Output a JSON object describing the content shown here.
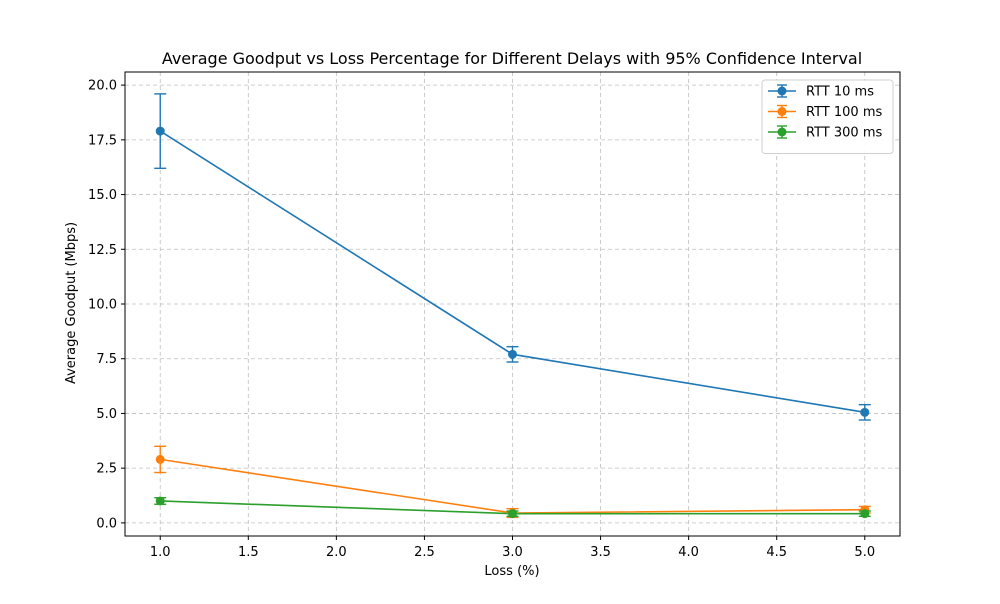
{
  "chart_data": {
    "type": "line",
    "title": "Average Goodput vs Loss Percentage for Different Delays with 95% Confidence Interval",
    "xlabel": "Loss (%)",
    "ylabel": "Average Goodput (Mbps)",
    "x_ticks": [
      "1.0",
      "1.5",
      "2.0",
      "2.5",
      "3.0",
      "3.5",
      "4.0",
      "4.5",
      "5.0"
    ],
    "y_ticks": [
      "0.0",
      "2.5",
      "5.0",
      "7.5",
      "10.0",
      "12.5",
      "15.0",
      "17.5",
      "20.0"
    ],
    "xlim": [
      0.8,
      5.2
    ],
    "ylim": [
      -0.6,
      20.6
    ],
    "grid": true,
    "legend_position": "top-right",
    "x": [
      1.0,
      3.0,
      5.0
    ],
    "series": [
      {
        "name": "RTT 10 ms",
        "color": "#1f77b4",
        "values": [
          17.9,
          7.7,
          5.05
        ],
        "error": [
          1.7,
          0.35,
          0.35
        ]
      },
      {
        "name": "RTT 100 ms",
        "color": "#ff7f0e",
        "values": [
          2.9,
          0.45,
          0.6
        ],
        "error": [
          0.6,
          0.2,
          0.15
        ]
      },
      {
        "name": "RTT 300 ms",
        "color": "#2ca02c",
        "values": [
          1.0,
          0.42,
          0.42
        ],
        "error": [
          0.15,
          0.12,
          0.12
        ]
      }
    ]
  }
}
